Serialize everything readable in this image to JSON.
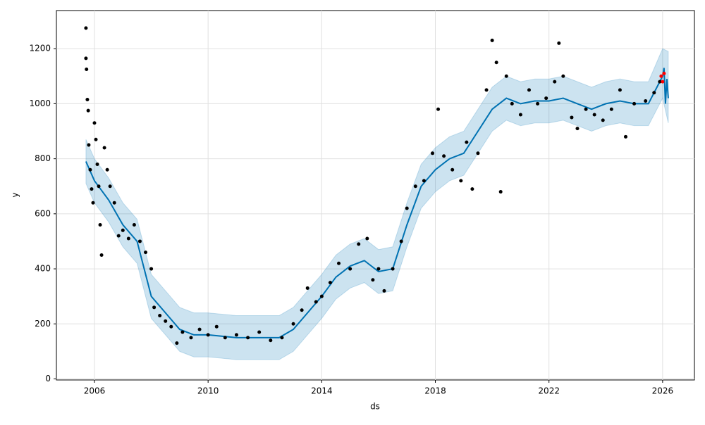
{
  "chart_data": {
    "type": "line",
    "xlabel": "ds",
    "ylabel": "y",
    "xlim": [
      2004.66,
      2027.12
    ],
    "ylim": [
      -3.8,
      1338.5
    ],
    "xticks": [
      2006,
      2010,
      2014,
      2018,
      2022,
      2026
    ],
    "yticks": [
      0,
      200,
      400,
      600,
      800,
      1000,
      1200
    ],
    "grid": true,
    "series": [
      {
        "type": "area",
        "color": "#0072B2",
        "opacity": 0.2,
        "x": [
          2005.7,
          2006,
          2006.5,
          2007,
          2007.5,
          2008,
          2008.5,
          2009,
          2009.5,
          2010,
          2011,
          2012,
          2012.5,
          2013,
          2013.5,
          2014,
          2014.5,
          2015,
          2015.5,
          2016,
          2016.5,
          2017,
          2017.5,
          2018,
          2018.5,
          2019,
          2019.5,
          2020,
          2020.5,
          2021,
          2021.5,
          2022,
          2022.5,
          2023,
          2023.5,
          2024,
          2024.5,
          2025,
          2025.5,
          2026,
          2026.2
        ],
        "lower": [
          710,
          640,
          570,
          480,
          420,
          220,
          160,
          100,
          80,
          80,
          70,
          70,
          70,
          100,
          160,
          220,
          290,
          330,
          350,
          310,
          320,
          480,
          620,
          680,
          720,
          740,
          820,
          900,
          940,
          920,
          930,
          930,
          940,
          920,
          900,
          920,
          930,
          920,
          920,
          1020,
          930
        ],
        "upper": [
          870,
          800,
          730,
          640,
          580,
          380,
          320,
          260,
          240,
          240,
          230,
          230,
          230,
          260,
          320,
          380,
          450,
          490,
          510,
          470,
          480,
          640,
          780,
          840,
          880,
          900,
          980,
          1060,
          1100,
          1080,
          1090,
          1090,
          1100,
          1080,
          1060,
          1080,
          1090,
          1080,
          1080,
          1200,
          1190
        ]
      },
      {
        "type": "line",
        "color": "#0072B2",
        "x": [
          2005.7,
          2006,
          2006.5,
          2007,
          2007.5,
          2008,
          2008.5,
          2009,
          2009.5,
          2010,
          2011,
          2012,
          2012.5,
          2013,
          2013.5,
          2014,
          2014.5,
          2015,
          2015.5,
          2016,
          2016.5,
          2017,
          2017.5,
          2018,
          2018.5,
          2019,
          2019.5,
          2020,
          2020.5,
          2021,
          2021.5,
          2022,
          2022.5,
          2023,
          2023.5,
          2024,
          2024.5,
          2025,
          2025.5,
          2026,
          2026.05,
          2026.1,
          2026.15,
          2026.2
        ],
        "values": [
          790,
          720,
          650,
          560,
          500,
          300,
          240,
          180,
          160,
          160,
          150,
          150,
          150,
          180,
          240,
          300,
          370,
          410,
          430,
          390,
          400,
          560,
          700,
          760,
          800,
          820,
          900,
          980,
          1020,
          1000,
          1010,
          1010,
          1020,
          1000,
          980,
          1000,
          1010,
          1000,
          1000,
          1100,
          1130,
          1000,
          1090,
          1020
        ]
      },
      {
        "type": "scatter",
        "color": "#000000",
        "x": [
          2005.7,
          2005.7,
          2005.72,
          2005.75,
          2005.78,
          2005.8,
          2005.85,
          2005.9,
          2005.95,
          2006.0,
          2006.05,
          2006.1,
          2006.15,
          2006.2,
          2006.25,
          2006.35,
          2006.45,
          2006.55,
          2006.7,
          2006.85,
          2007.0,
          2007.2,
          2007.4,
          2007.6,
          2007.8,
          2008.0,
          2008.1,
          2008.3,
          2008.5,
          2008.7,
          2008.9,
          2009.1,
          2009.4,
          2009.7,
          2010.0,
          2010.3,
          2010.6,
          2011.0,
          2011.4,
          2011.8,
          2012.2,
          2012.6,
          2013.0,
          2013.3,
          2013.5,
          2013.8,
          2014.0,
          2014.3,
          2014.6,
          2015.0,
          2015.3,
          2015.6,
          2015.8,
          2016.0,
          2016.2,
          2016.5,
          2016.8,
          2017.0,
          2017.3,
          2017.6,
          2017.9,
          2018.1,
          2018.3,
          2018.6,
          2018.9,
          2019.1,
          2019.3,
          2019.5,
          2019.8,
          2020.0,
          2020.15,
          2020.3,
          2020.5,
          2020.7,
          2021.0,
          2021.3,
          2021.6,
          2021.9,
          2022.2,
          2022.35,
          2022.5,
          2022.8,
          2023.0,
          2023.3,
          2023.6,
          2023.9,
          2024.2,
          2024.5,
          2024.7,
          2025.0,
          2025.4,
          2025.7,
          2025.9
        ],
        "values": [
          1275,
          1165,
          1125,
          1015,
          975,
          850,
          760,
          690,
          640,
          930,
          870,
          780,
          700,
          560,
          450,
          840,
          760,
          700,
          640,
          520,
          540,
          510,
          560,
          500,
          460,
          400,
          260,
          230,
          210,
          190,
          130,
          170,
          150,
          180,
          160,
          190,
          150,
          160,
          150,
          170,
          140,
          150,
          200,
          250,
          330,
          280,
          300,
          350,
          420,
          400,
          490,
          510,
          360,
          400,
          320,
          400,
          500,
          620,
          700,
          720,
          820,
          980,
          810,
          760,
          720,
          860,
          690,
          820,
          1050,
          1230,
          1150,
          680,
          1100,
          1000,
          960,
          1050,
          1000,
          1020,
          1080,
          1220,
          1100,
          950,
          910,
          980,
          960,
          940,
          980,
          1050,
          880,
          1000,
          1010,
          1040,
          1080
        ]
      },
      {
        "type": "scatter",
        "color": "#ff0000",
        "x": [
          2025.95,
          2026.0,
          2026.05
        ],
        "values": [
          1100,
          1080,
          1110
        ]
      }
    ]
  }
}
